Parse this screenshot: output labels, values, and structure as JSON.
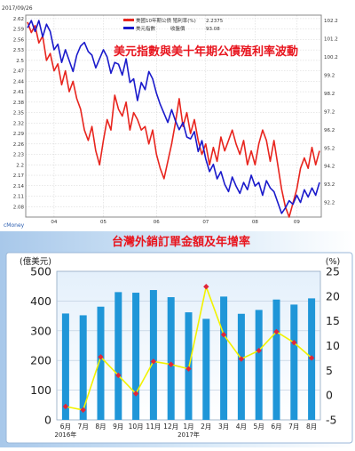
{
  "chart_data": [
    {
      "type": "line",
      "title": "美元指數與美十年期公債殖利率波動",
      "date_label": "2017/09/26",
      "source_label": "cMoney",
      "legend": {
        "bond_label": "美國10年期公債 殖利率(%)",
        "bond_value": "2.2375",
        "dxy_label": "美元指數",
        "dxy_kind": "收盤價",
        "dxy_value": "93.08"
      },
      "x_ticks": [
        "04",
        "05",
        "06",
        "07",
        "08",
        "09"
      ],
      "left_axis": {
        "ticks": [
          "2.62",
          "2.59",
          "2.56",
          "2.53",
          "2.5",
          "2.47",
          "2.44",
          "2.41",
          "2.38",
          "2.35",
          "2.32",
          "2.29",
          "2.26",
          "2.23",
          "2.2",
          "2.17",
          "2.14",
          "2.11",
          "2.08"
        ],
        "range": [
          2.05,
          2.63
        ]
      },
      "right_axis": {
        "ticks": [
          "102.2",
          "101.2",
          "100.2",
          "99.2",
          "98.2",
          "97.2",
          "96.2",
          "95.2",
          "94.2",
          "93.2",
          "92.2"
        ],
        "range": [
          91.4,
          102.5
        ]
      },
      "series": [
        {
          "name": "美國10年期公債 殖利率(%)",
          "color": "#e8251e",
          "axis": "left",
          "values": [
            2.61,
            2.58,
            2.6,
            2.55,
            2.57,
            2.5,
            2.52,
            2.47,
            2.49,
            2.43,
            2.47,
            2.41,
            2.44,
            2.39,
            2.36,
            2.3,
            2.27,
            2.31,
            2.24,
            2.2,
            2.27,
            2.33,
            2.3,
            2.4,
            2.36,
            2.34,
            2.38,
            2.3,
            2.35,
            2.33,
            2.3,
            2.31,
            2.26,
            2.3,
            2.23,
            2.19,
            2.16,
            2.21,
            2.26,
            2.32,
            2.39,
            2.31,
            2.35,
            2.29,
            2.33,
            2.27,
            2.23,
            2.26,
            2.2,
            2.25,
            2.21,
            2.28,
            2.24,
            2.27,
            2.3,
            2.26,
            2.23,
            2.27,
            2.2,
            2.24,
            2.2,
            2.26,
            2.3,
            2.27,
            2.21,
            2.27,
            2.2,
            2.13,
            2.08,
            2.05,
            2.09,
            2.13,
            2.19,
            2.22,
            2.19,
            2.25,
            2.2,
            2.24
          ]
        },
        {
          "name": "美元指數",
          "color": "#1a1acb",
          "axis": "right",
          "values": [
            101.8,
            102.2,
            101.6,
            102.2,
            101.3,
            102.0,
            101.6,
            100.6,
            100.9,
            99.9,
            100.6,
            100.0,
            99.4,
            100.3,
            100.8,
            101.0,
            100.5,
            100.3,
            99.6,
            100.1,
            100.6,
            100.2,
            99.3,
            99.9,
            99.8,
            99.2,
            100.1,
            98.8,
            99.0,
            97.8,
            98.8,
            98.4,
            99.4,
            99.0,
            98.2,
            97.6,
            97.1,
            96.6,
            97.3,
            96.7,
            96.2,
            96.6,
            95.8,
            95.7,
            96.1,
            95.0,
            95.6,
            94.6,
            93.9,
            94.3,
            93.5,
            93.9,
            93.2,
            92.8,
            93.6,
            93.1,
            92.7,
            93.3,
            92.9,
            93.7,
            93.1,
            93.3,
            92.6,
            93.4,
            93.0,
            92.8,
            92.2,
            91.6,
            91.9,
            92.3,
            92.1,
            92.6,
            92.2,
            92.9,
            92.5,
            93.0,
            92.6,
            93.3
          ]
        }
      ]
    },
    {
      "type": "bar",
      "title": "台灣外銷訂單金額及年增率",
      "left_unit": "(億美元)",
      "right_unit": "(%)",
      "categories": [
        "6月",
        "7月",
        "8月",
        "9月",
        "10月",
        "11月",
        "12月",
        "1月",
        "2月",
        "3月",
        "4月",
        "5月",
        "6月",
        "7月",
        "8月"
      ],
      "year_labels": [
        {
          "text": "2016年",
          "at_index": 0
        },
        {
          "text": "2017年",
          "at_index": 7
        }
      ],
      "ylim": [
        0,
        500
      ],
      "y2lim": [
        -5,
        25
      ],
      "yticks": [
        "0",
        "100",
        "200",
        "300",
        "400",
        "500"
      ],
      "y2ticks": [
        "-5",
        "0",
        "5",
        "10",
        "15",
        "20",
        "25"
      ],
      "series": [
        {
          "name": "外銷訂單金額",
          "kind": "bar",
          "color": "#1f96d8",
          "values": [
            358,
            352,
            381,
            430,
            428,
            437,
            413,
            362,
            340,
            415,
            357,
            370,
            405,
            388,
            409
          ]
        },
        {
          "name": "年增率",
          "kind": "line",
          "line_color": "#f2f200",
          "marker_color": "#e0263a",
          "values": [
            -2.3,
            -3.0,
            7.7,
            4.0,
            0.3,
            6.8,
            6.2,
            5.3,
            21.9,
            12.2,
            7.3,
            9.0,
            12.8,
            10.6,
            7.5
          ]
        }
      ]
    }
  ]
}
